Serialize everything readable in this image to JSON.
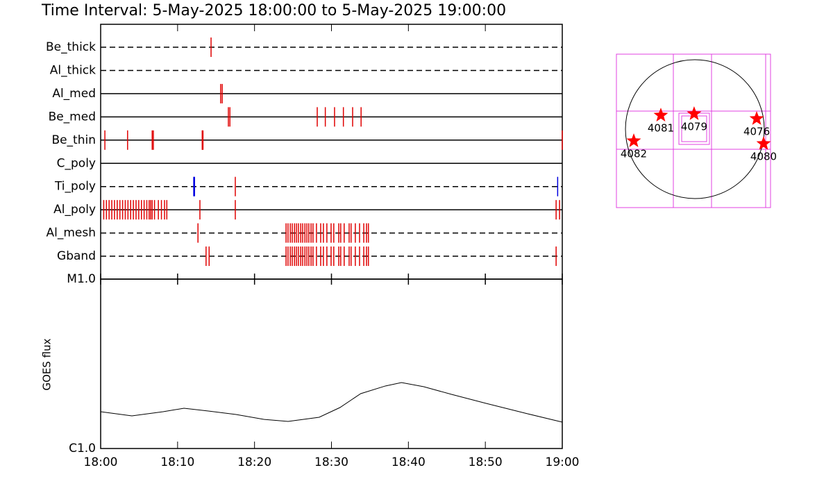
{
  "chart_data": [
    {
      "type": "timeline",
      "title": "Time Interval:  5-May-2025 18:00:00 to  5-May-2025 19:00:00",
      "xlim": [
        0,
        60
      ],
      "rows": [
        {
          "name": "Be_thick",
          "dashed": true,
          "events": [
            {
              "color": "#e00000",
              "times": [
                14.35
              ]
            }
          ]
        },
        {
          "name": "Al_thick",
          "dashed": true,
          "events": []
        },
        {
          "name": "Al_med",
          "dashed": false,
          "events": [
            {
              "color": "#e00000",
              "times": [
                15.6,
                15.8
              ]
            }
          ]
        },
        {
          "name": "Be_med",
          "dashed": false,
          "events": [
            {
              "color": "#e00000",
              "times": [
                16.6,
                16.8,
                28.15,
                29.2,
                30.4,
                31.55,
                32.75,
                33.85
              ]
            }
          ]
        },
        {
          "name": "Be_thin",
          "dashed": false,
          "events": [
            {
              "color": "#e00000",
              "times": [
                0.55,
                3.5,
                6.7,
                6.85,
                13.2,
                13.3,
                60
              ]
            }
          ]
        },
        {
          "name": "C_poly",
          "dashed": false,
          "events": []
        },
        {
          "name": "Ti_poly",
          "dashed": true,
          "events": [
            {
              "color": "#0000e0",
              "times": [
                12.1,
                12.2,
                59.4
              ]
            },
            {
              "color": "#e00000",
              "times": [
                17.5
              ]
            }
          ]
        },
        {
          "name": "Al_poly",
          "dashed": false,
          "events": [
            {
              "color": "#e00000",
              "times": [
                0.4,
                0.75,
                1.1,
                1.45,
                1.8,
                2.15,
                2.5,
                2.85,
                3.2,
                3.55,
                3.9,
                4.25,
                4.6,
                4.95,
                5.3,
                5.65,
                6.0,
                6.3,
                6.5,
                6.7,
                7.0,
                7.5,
                7.9,
                8.3,
                8.6,
                12.9,
                17.5,
                59.2,
                59.65
              ]
            }
          ]
        },
        {
          "name": "Al_mesh",
          "dashed": true,
          "events": [
            {
              "color": "#e00000",
              "times": [
                12.65,
                24.1,
                24.35,
                24.65,
                24.9,
                25.2,
                25.45,
                25.7,
                26.0,
                26.25,
                26.55,
                26.8,
                27.05,
                27.35,
                27.6,
                28.05,
                28.6,
                28.95,
                29.4,
                29.95,
                30.3,
                30.95,
                31.2,
                31.65,
                32.3,
                32.55,
                33.1,
                33.65,
                34.2,
                34.55,
                34.8
              ]
            }
          ]
        },
        {
          "name": "Gband",
          "dashed": true,
          "events": [
            {
              "color": "#e00000",
              "times": [
                13.7,
                14.1,
                24.1,
                24.35,
                24.65,
                24.9,
                25.2,
                25.45,
                25.7,
                26.0,
                26.25,
                26.55,
                26.8,
                27.05,
                27.35,
                27.6,
                28.05,
                28.6,
                28.95,
                29.4,
                29.95,
                30.3,
                30.95,
                31.2,
                31.65,
                32.3,
                32.55,
                33.1,
                33.65,
                34.2,
                34.55,
                34.8,
                59.2
              ]
            }
          ]
        }
      ]
    },
    {
      "type": "line",
      "ylabel": "GOES flux",
      "log_y": true,
      "color": "#000000",
      "x": [
        0,
        4.06,
        8.12,
        10.83,
        13.99,
        17.6,
        21.2,
        24.36,
        28.4,
        31.1,
        33.8,
        37.0,
        39.1,
        42.0,
        45.6,
        50.1,
        55.5,
        60
      ],
      "values": [
        1.649e-06,
        1.558e-06,
        1.649e-06,
        1.729e-06,
        1.665e-06,
        1.588e-06,
        1.486e-06,
        1.445e-06,
        1.529e-06,
        1.745e-06,
        2.108e-06,
        2.339e-06,
        2.451e-06,
        2.316e-06,
        2.087e-06,
        1.847e-06,
        1.603e-06,
        1.431e-06
      ],
      "xlim": [
        0,
        60
      ],
      "xticks": [
        {
          "value": 0,
          "label": "18:00"
        },
        {
          "value": 10,
          "label": "18:10"
        },
        {
          "value": 20,
          "label": "18:20"
        },
        {
          "value": 30,
          "label": "18:30"
        },
        {
          "value": 40,
          "label": "18:40"
        },
        {
          "value": 50,
          "label": "18:50"
        },
        {
          "value": 60,
          "label": "19:00"
        }
      ],
      "ylim": [
        1e-06,
        1e-05
      ],
      "yticks": [
        {
          "value": 1e-06,
          "label": "C1.0"
        },
        {
          "value": 1e-05,
          "label": "M1.0"
        }
      ]
    },
    {
      "type": "map",
      "color": "#ff0000",
      "solar_radius": 952,
      "xlim": [
        -1076,
        1038
      ],
      "ylim": [
        -1076,
        1029
      ],
      "regions": [
        {
          "label": "4081",
          "x": -467,
          "y": 190
        },
        {
          "label": "4079",
          "x": -10,
          "y": 210
        },
        {
          "label": "4076",
          "x": 848,
          "y": 143
        },
        {
          "label": "4082",
          "x": -838,
          "y": -162
        },
        {
          "label": "4080",
          "x": 943,
          "y": -200
        }
      ]
    }
  ]
}
